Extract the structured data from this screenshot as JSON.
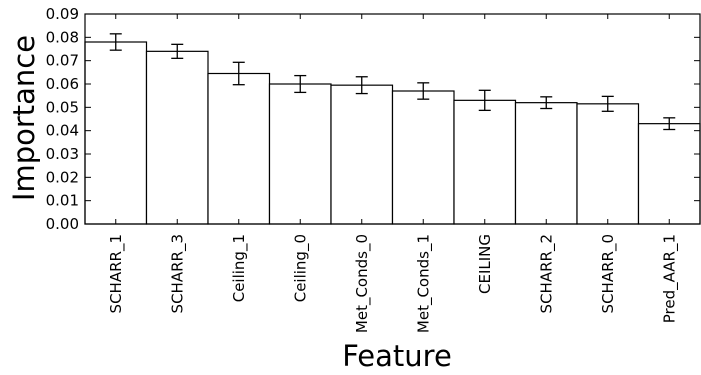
{
  "chart_data": {
    "type": "bar",
    "xlabel": "Feature",
    "ylabel": "Importance",
    "ylim": [
      0,
      0.09
    ],
    "yticks": [
      "0.00",
      "0.01",
      "0.02",
      "0.03",
      "0.04",
      "0.05",
      "0.06",
      "0.07",
      "0.08",
      "0.09"
    ],
    "categories": [
      "SCHARR_1",
      "SCHARR_3",
      "Ceiling_1",
      "Ceiling_0",
      "Met_Conds_0",
      "Met_Conds_1",
      "CEILING",
      "SCHARR_2",
      "SCHARR_0",
      "Pred_AAR_1"
    ],
    "values": [
      0.078,
      0.074,
      0.0645,
      0.06,
      0.0595,
      0.057,
      0.053,
      0.052,
      0.0515,
      0.043
    ],
    "errors": [
      0.0035,
      0.003,
      0.0048,
      0.0036,
      0.0036,
      0.0035,
      0.0043,
      0.0025,
      0.0032,
      0.0025
    ],
    "bar_color": "#ffffff",
    "edge_color": "#000000",
    "grid": false,
    "legend": "none"
  }
}
